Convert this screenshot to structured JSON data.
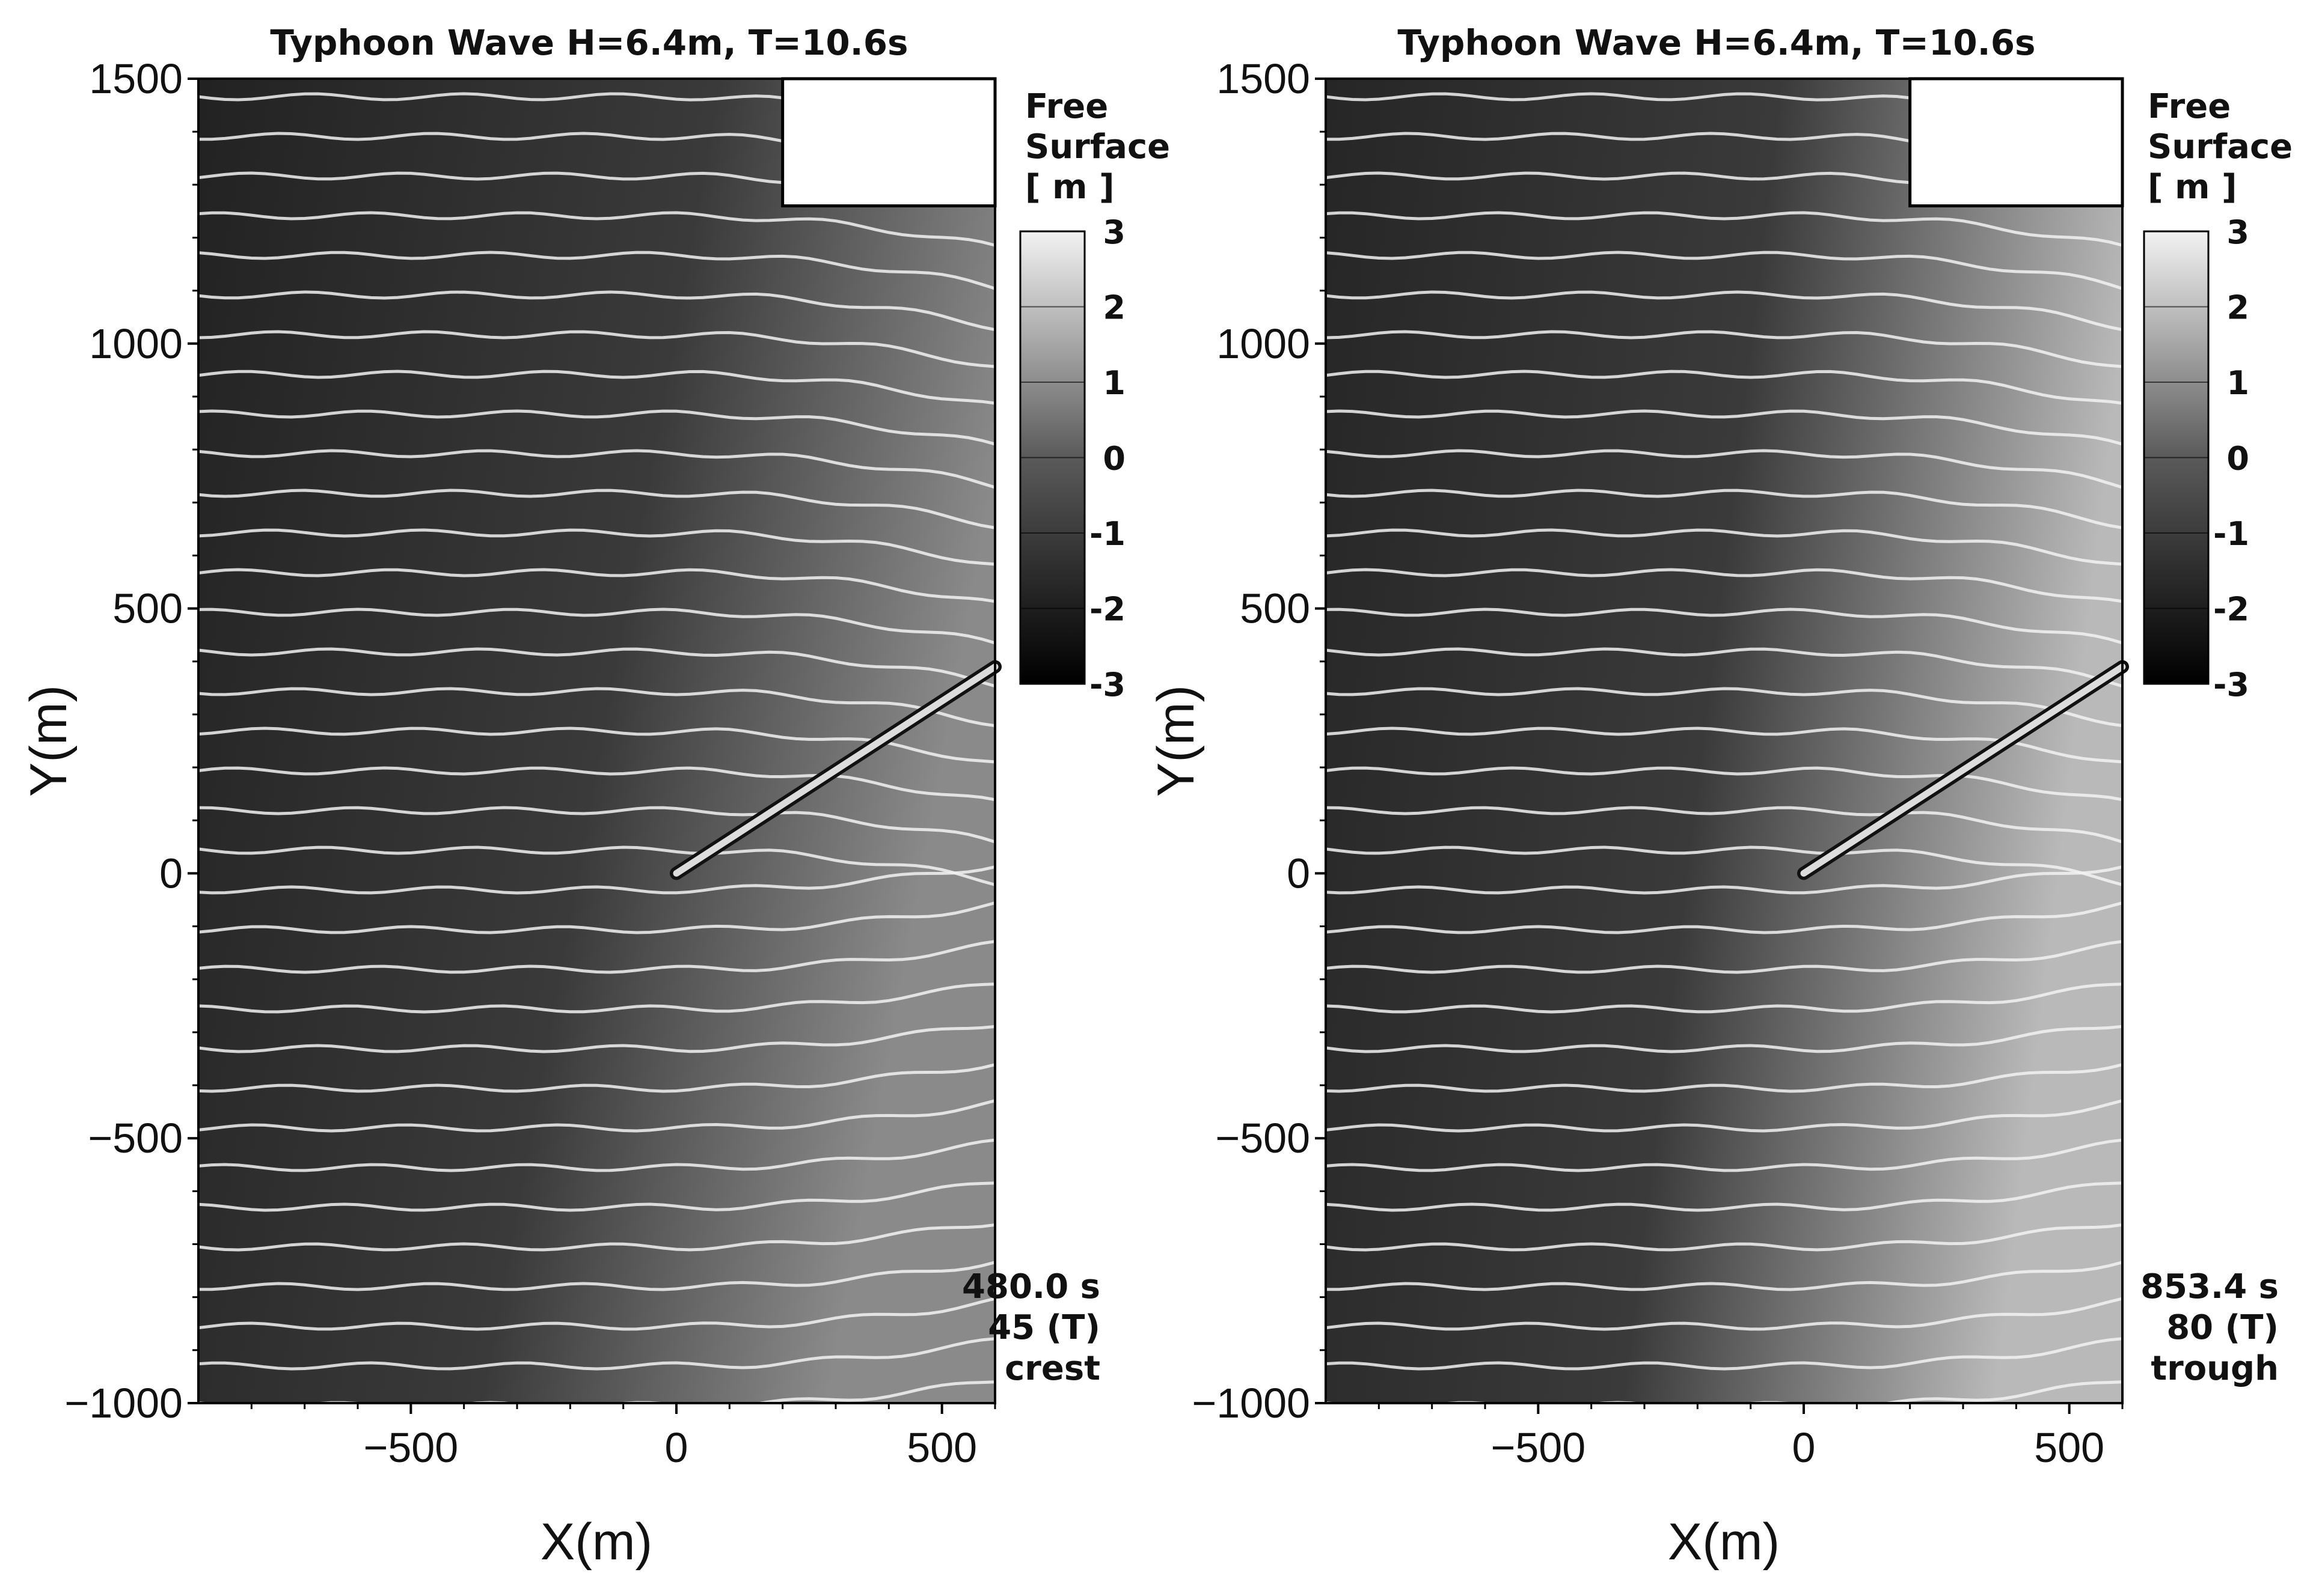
{
  "chart_data": [
    {
      "type": "heatmap",
      "title": "Typhoon Wave H=6.4m, T=10.6s",
      "xlabel": "X(m)",
      "ylabel": "Y(m)",
      "xlim": [
        -900,
        600
      ],
      "ylim": [
        -1000,
        1500
      ],
      "x_ticks": [
        "−500",
        "0",
        "500"
      ],
      "y_ticks": [
        "1500",
        "1000",
        "500",
        "0",
        "−500",
        "−1000"
      ],
      "colorbar": {
        "title": [
          "Free",
          "Surface",
          "[ m ]"
        ],
        "range": [
          -3,
          3
        ],
        "ticks": [
          "3",
          "2",
          "1",
          "0",
          "-1",
          "-2",
          "-3"
        ],
        "colormap": "grayscale"
      },
      "annotation": [
        "480.0 s",
        "45 (T)",
        "crest"
      ],
      "breakwater": {
        "x_start": 0,
        "y_start": 0,
        "x_end": 600,
        "y_end": 390
      },
      "blank_region": {
        "x_range": [
          200,
          600
        ],
        "y_range": [
          1260,
          1500
        ]
      }
    },
    {
      "type": "heatmap",
      "title": "Typhoon Wave H=6.4m, T=10.6s",
      "xlabel": "X(m)",
      "ylabel": "Y(m)",
      "xlim": [
        -900,
        600
      ],
      "ylim": [
        -1000,
        1500
      ],
      "x_ticks": [
        "−500",
        "0",
        "500"
      ],
      "y_ticks": [
        "1500",
        "1000",
        "500",
        "0",
        "−500",
        "−1000"
      ],
      "colorbar": {
        "title": [
          "Free",
          "Surface",
          "[ m ]"
        ],
        "range": [
          -3,
          3
        ],
        "ticks": [
          "3",
          "2",
          "1",
          "0",
          "-1",
          "-2",
          "-3"
        ],
        "colormap": "grayscale"
      },
      "annotation": [
        "853.4 s",
        "80 (T)",
        "trough"
      ],
      "breakwater": {
        "x_start": 0,
        "y_start": 0,
        "x_end": 600,
        "y_end": 390
      },
      "blank_region": {
        "x_range": [
          200,
          600
        ],
        "y_range": [
          1260,
          1500
        ]
      }
    }
  ]
}
